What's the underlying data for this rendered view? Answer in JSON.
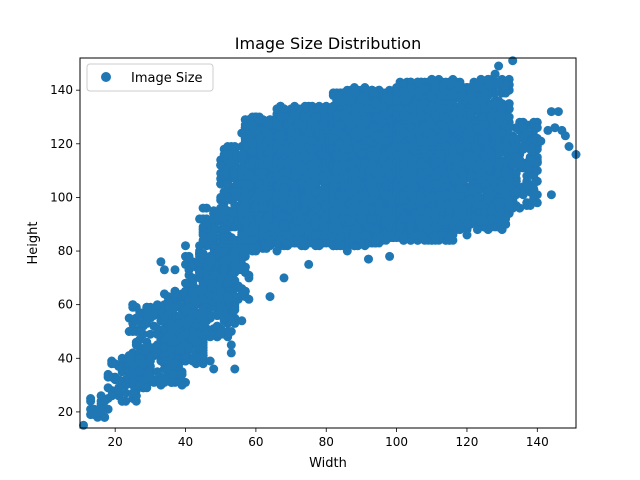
{
  "chart_data": {
    "type": "scatter",
    "title": "Image Size Distribution",
    "xlabel": "Width",
    "ylabel": "Height",
    "xlim": [
      10,
      151
    ],
    "ylim": [
      14,
      152
    ],
    "xticks": [
      20,
      40,
      60,
      80,
      100,
      120,
      140
    ],
    "yticks": [
      20,
      40,
      60,
      80,
      100,
      120,
      140
    ],
    "grid": false,
    "legend_position": "upper-left",
    "series": [
      {
        "name": "Image Size",
        "color": "#1f77b4",
        "clusters": [
          {
            "x": [
              12,
              18
            ],
            "y": [
              16,
              26
            ],
            "n": 20
          },
          {
            "x": [
              18,
              30
            ],
            "y": [
              24,
              40
            ],
            "n": 70
          },
          {
            "x": [
              24,
              40
            ],
            "y": [
              30,
              60
            ],
            "n": 220
          },
          {
            "x": [
              34,
              46
            ],
            "y": [
              38,
              66
            ],
            "n": 200
          },
          {
            "x": [
              40,
              54
            ],
            "y": [
              48,
              80
            ],
            "n": 230
          },
          {
            "x": [
              44,
              58
            ],
            "y": [
              62,
              96
            ],
            "n": 220
          },
          {
            "x": [
              50,
              66
            ],
            "y": [
              80,
              120
            ],
            "n": 360
          },
          {
            "x": [
              56,
              76
            ],
            "y": [
              84,
              130
            ],
            "n": 1100
          },
          {
            "x": [
              66,
              96
            ],
            "y": [
              82,
              134
            ],
            "n": 2300
          },
          {
            "x": [
              82,
              116
            ],
            "y": [
              84,
              140
            ],
            "n": 2400
          },
          {
            "x": [
              100,
              132
            ],
            "y": [
              88,
              144
            ],
            "n": 1800
          },
          {
            "x": [
              112,
              140
            ],
            "y": [
              96,
              128
            ],
            "n": 500
          }
        ],
        "points": [
          {
            "x": 11,
            "y": 15
          },
          {
            "x": 14,
            "y": 19
          },
          {
            "x": 16,
            "y": 22
          },
          {
            "x": 17,
            "y": 24
          },
          {
            "x": 25,
            "y": 59
          },
          {
            "x": 25,
            "y": 60
          },
          {
            "x": 33,
            "y": 76
          },
          {
            "x": 34,
            "y": 73
          },
          {
            "x": 37,
            "y": 73
          },
          {
            "x": 40,
            "y": 82
          },
          {
            "x": 48,
            "y": 36
          },
          {
            "x": 47,
            "y": 39
          },
          {
            "x": 53,
            "y": 45
          },
          {
            "x": 53,
            "y": 42
          },
          {
            "x": 54,
            "y": 36
          },
          {
            "x": 51,
            "y": 55
          },
          {
            "x": 56,
            "y": 54
          },
          {
            "x": 64,
            "y": 63
          },
          {
            "x": 68,
            "y": 70
          },
          {
            "x": 75,
            "y": 75
          },
          {
            "x": 86,
            "y": 80
          },
          {
            "x": 98,
            "y": 78
          },
          {
            "x": 88,
            "y": 141
          },
          {
            "x": 91,
            "y": 141
          },
          {
            "x": 104,
            "y": 141
          },
          {
            "x": 110,
            "y": 144
          },
          {
            "x": 124,
            "y": 144
          },
          {
            "x": 128,
            "y": 146
          },
          {
            "x": 129,
            "y": 149
          },
          {
            "x": 133,
            "y": 151
          },
          {
            "x": 136,
            "y": 119
          },
          {
            "x": 138,
            "y": 118
          },
          {
            "x": 140,
            "y": 126
          },
          {
            "x": 141,
            "y": 121
          },
          {
            "x": 143,
            "y": 125
          },
          {
            "x": 144,
            "y": 132
          },
          {
            "x": 145,
            "y": 126
          },
          {
            "x": 146,
            "y": 132
          },
          {
            "x": 147,
            "y": 125
          },
          {
            "x": 148,
            "y": 123
          },
          {
            "x": 149,
            "y": 119
          },
          {
            "x": 151,
            "y": 116
          },
          {
            "x": 144,
            "y": 101
          },
          {
            "x": 132,
            "y": 108
          },
          {
            "x": 134,
            "y": 115
          },
          {
            "x": 127,
            "y": 95
          },
          {
            "x": 123,
            "y": 88
          },
          {
            "x": 120,
            "y": 86
          },
          {
            "x": 130,
            "y": 103
          },
          {
            "x": 97,
            "y": 91
          },
          {
            "x": 92,
            "y": 77
          },
          {
            "x": 82,
            "y": 82
          }
        ]
      }
    ]
  }
}
